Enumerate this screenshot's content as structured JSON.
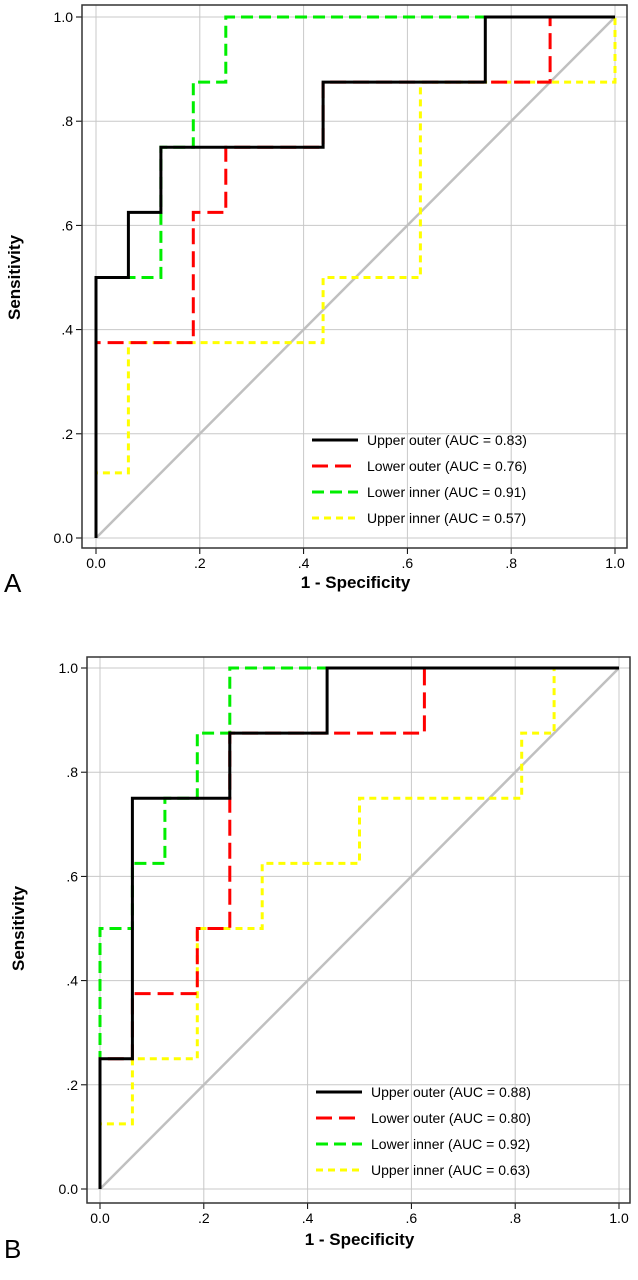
{
  "chart_data": [
    {
      "panel_label": "A",
      "type": "line",
      "step": true,
      "xlabel": "1 - Specificity",
      "ylabel": "Sensitivity",
      "xlim": [
        0,
        1
      ],
      "ylim": [
        0,
        1
      ],
      "xticks": [
        "0.0",
        ".2",
        ".4",
        ".6",
        ".8",
        "1.0"
      ],
      "yticks": [
        "0.0",
        ".2",
        ".4",
        ".6",
        ".8",
        "1.0"
      ],
      "grid": true,
      "legend_position": "bottom-right",
      "reference_line": {
        "x": [
          0,
          1
        ],
        "y": [
          0,
          1
        ],
        "color": "#c0c0c0"
      },
      "series": [
        {
          "name": "Upper outer (AUC = 0.83)",
          "color": "#000000",
          "dash": "solid",
          "x": [
            0,
            0,
            0.0625,
            0.0625,
            0.125,
            0.125,
            0.4375,
            0.4375,
            0.75,
            0.75,
            1
          ],
          "y": [
            0,
            0.5,
            0.5,
            0.625,
            0.625,
            0.75,
            0.75,
            0.875,
            0.875,
            1,
            1
          ]
        },
        {
          "name": "Lower outer (AUC = 0.76)",
          "color": "#ff0000",
          "dash": "long",
          "x": [
            0,
            0,
            0.1875,
            0.1875,
            0.25,
            0.25,
            0.4375,
            0.4375,
            0.875,
            0.875,
            1
          ],
          "y": [
            0,
            0.375,
            0.375,
            0.625,
            0.625,
            0.75,
            0.75,
            0.875,
            0.875,
            1,
            1
          ]
        },
        {
          "name": "Lower inner (AUC = 0.91)",
          "color": "#00ee00",
          "dash": "medium",
          "x": [
            0,
            0,
            0.125,
            0.125,
            0.1875,
            0.1875,
            0.25,
            0.25,
            1
          ],
          "y": [
            0,
            0.5,
            0.5,
            0.75,
            0.75,
            0.875,
            0.875,
            1,
            1
          ]
        },
        {
          "name": "Upper inner (AUC = 0.57)",
          "color": "#ffff00",
          "dash": "short",
          "x": [
            0,
            0,
            0.0625,
            0.0625,
            0.4375,
            0.4375,
            0.625,
            0.625,
            1,
            1
          ],
          "y": [
            0,
            0.125,
            0.125,
            0.375,
            0.375,
            0.5,
            0.5,
            0.875,
            0.875,
            1
          ]
        }
      ]
    },
    {
      "panel_label": "B",
      "type": "line",
      "step": true,
      "xlabel": "1 - Specificity",
      "ylabel": "Sensitivity",
      "xlim": [
        0,
        1
      ],
      "ylim": [
        0,
        1
      ],
      "xticks": [
        "0.0",
        ".2",
        ".4",
        ".6",
        ".8",
        "1.0"
      ],
      "yticks": [
        "0.0",
        ".2",
        ".4",
        ".6",
        ".8",
        "1.0"
      ],
      "grid": true,
      "legend_position": "bottom-right",
      "reference_line": {
        "x": [
          0,
          1
        ],
        "y": [
          0,
          1
        ],
        "color": "#c0c0c0"
      },
      "series": [
        {
          "name": "Upper outer (AUC = 0.88)",
          "color": "#000000",
          "dash": "solid",
          "x": [
            0,
            0,
            0.0625,
            0.0625,
            0.25,
            0.25,
            0.4375,
            0.4375,
            1
          ],
          "y": [
            0,
            0.25,
            0.25,
            0.75,
            0.75,
            0.875,
            0.875,
            1,
            1
          ]
        },
        {
          "name": "Lower outer (AUC = 0.80)",
          "color": "#ff0000",
          "dash": "long",
          "x": [
            0,
            0,
            0.0625,
            0.0625,
            0.1875,
            0.1875,
            0.25,
            0.25,
            0.625,
            0.625,
            1
          ],
          "y": [
            0,
            0.25,
            0.25,
            0.375,
            0.375,
            0.5,
            0.5,
            0.875,
            0.875,
            1,
            1
          ]
        },
        {
          "name": "Lower inner (AUC = 0.92)",
          "color": "#00ee00",
          "dash": "medium",
          "x": [
            0,
            0,
            0.0625,
            0.0625,
            0.125,
            0.125,
            0.1875,
            0.1875,
            0.25,
            0.25,
            1
          ],
          "y": [
            0,
            0.5,
            0.5,
            0.625,
            0.625,
            0.75,
            0.75,
            0.875,
            0.875,
            1,
            1
          ]
        },
        {
          "name": "Upper inner (AUC = 0.63)",
          "color": "#ffff00",
          "dash": "short",
          "x": [
            0,
            0,
            0.0625,
            0.0625,
            0.1875,
            0.1875,
            0.3125,
            0.3125,
            0.5,
            0.5,
            0.8125,
            0.8125,
            0.875,
            0.875,
            1
          ],
          "y": [
            0,
            0.125,
            0.125,
            0.25,
            0.25,
            0.5,
            0.5,
            0.625,
            0.625,
            0.75,
            0.75,
            0.875,
            0.875,
            1,
            1
          ]
        }
      ]
    }
  ]
}
